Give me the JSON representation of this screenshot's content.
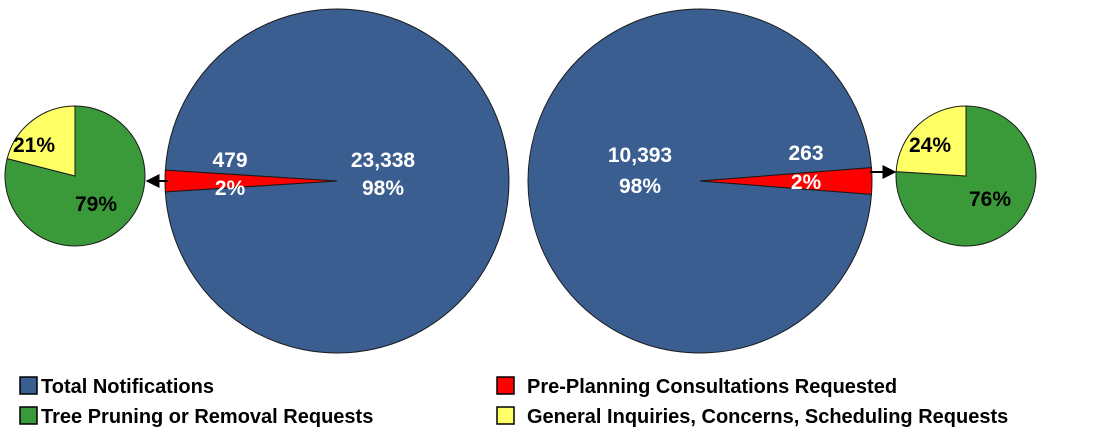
{
  "colors": {
    "total": "#3B5E91",
    "pre_planning": "#FF0000",
    "tree": "#3A9A3A",
    "general": "#FFFF66",
    "outline": "#1a1a1a",
    "label_light": "#ffffff",
    "label_dark": "#000000"
  },
  "legend": [
    {
      "label": "Total Notifications",
      "color_key": "total"
    },
    {
      "label": "Tree Pruning or Removal Requests",
      "color_key": "tree"
    },
    {
      "label": "Pre-Planning Consultations Requested",
      "color_key": "pre_planning"
    },
    {
      "label": "General Inquiries, Concerns, Scheduling Requests",
      "color_key": "general"
    }
  ],
  "chart_data": [
    {
      "type": "pie",
      "slices": [
        {
          "name": "Total Notifications",
          "value": 23338,
          "value_label": "23,338",
          "percent_label": "98%",
          "color_key": "total"
        },
        {
          "name": "Pre-Planning Consultations Requested",
          "value": 479,
          "value_label": "479",
          "percent_label": "2%",
          "color_key": "pre_planning"
        }
      ]
    },
    {
      "type": "pie",
      "slices": [
        {
          "name": "Tree Pruning or Removal Requests",
          "value": 79,
          "percent_label": "79%",
          "color_key": "tree"
        },
        {
          "name": "General Inquiries, Concerns, Scheduling Requests",
          "value": 21,
          "percent_label": "21%",
          "color_key": "general"
        }
      ]
    },
    {
      "type": "pie",
      "slices": [
        {
          "name": "Total Notifications",
          "value": 10393,
          "value_label": "10,393",
          "percent_label": "98%",
          "color_key": "total"
        },
        {
          "name": "Pre-Planning Consultations Requested",
          "value": 263,
          "value_label": "263",
          "percent_label": "2%",
          "color_key": "pre_planning"
        }
      ]
    },
    {
      "type": "pie",
      "slices": [
        {
          "name": "Tree Pruning or Removal Requests",
          "value": 76,
          "percent_label": "76%",
          "color_key": "tree"
        },
        {
          "name": "General Inquiries, Concerns, Scheduling Requests",
          "value": 24,
          "percent_label": "24%",
          "color_key": "general"
        }
      ]
    }
  ]
}
